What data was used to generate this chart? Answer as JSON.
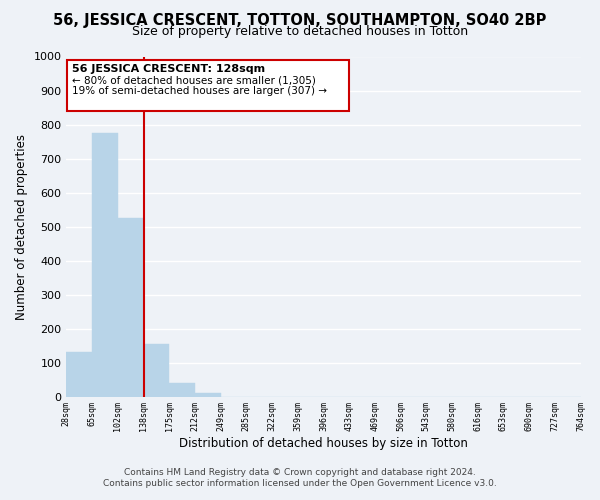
{
  "title": "56, JESSICA CRESCENT, TOTTON, SOUTHAMPTON, SO40 2BP",
  "subtitle": "Size of property relative to detached houses in Totton",
  "xlabel": "Distribution of detached houses by size in Totton",
  "ylabel": "Number of detached properties",
  "footer_line1": "Contains HM Land Registry data © Crown copyright and database right 2024.",
  "footer_line2": "Contains public sector information licensed under the Open Government Licence v3.0.",
  "bin_labels": [
    "28sqm",
    "65sqm",
    "102sqm",
    "138sqm",
    "175sqm",
    "212sqm",
    "249sqm",
    "285sqm",
    "322sqm",
    "359sqm",
    "396sqm",
    "433sqm",
    "469sqm",
    "506sqm",
    "543sqm",
    "580sqm",
    "616sqm",
    "653sqm",
    "690sqm",
    "727sqm",
    "764sqm"
  ],
  "bar_values": [
    130,
    775,
    525,
    155,
    40,
    10,
    0,
    0,
    0,
    0,
    0,
    0,
    0,
    0,
    0,
    0,
    0,
    0,
    0,
    0
  ],
  "bar_color": "#b8d4e8",
  "bar_edge_color": "#b8d4e8",
  "ylim": [
    0,
    1000
  ],
  "yticks": [
    0,
    100,
    200,
    300,
    400,
    500,
    600,
    700,
    800,
    900,
    1000
  ],
  "property_line_color": "#cc0000",
  "annotation_title": "56 JESSICA CRESCENT: 128sqm",
  "annotation_line1": "← 80% of detached houses are smaller (1,305)",
  "annotation_line2": "19% of semi-detached houses are larger (307) →",
  "annotation_box_color": "#ffffff",
  "annotation_box_edge_color": "#cc0000",
  "background_color": "#eef2f7",
  "grid_color": "#ffffff",
  "title_fontsize": 10.5,
  "subtitle_fontsize": 9
}
